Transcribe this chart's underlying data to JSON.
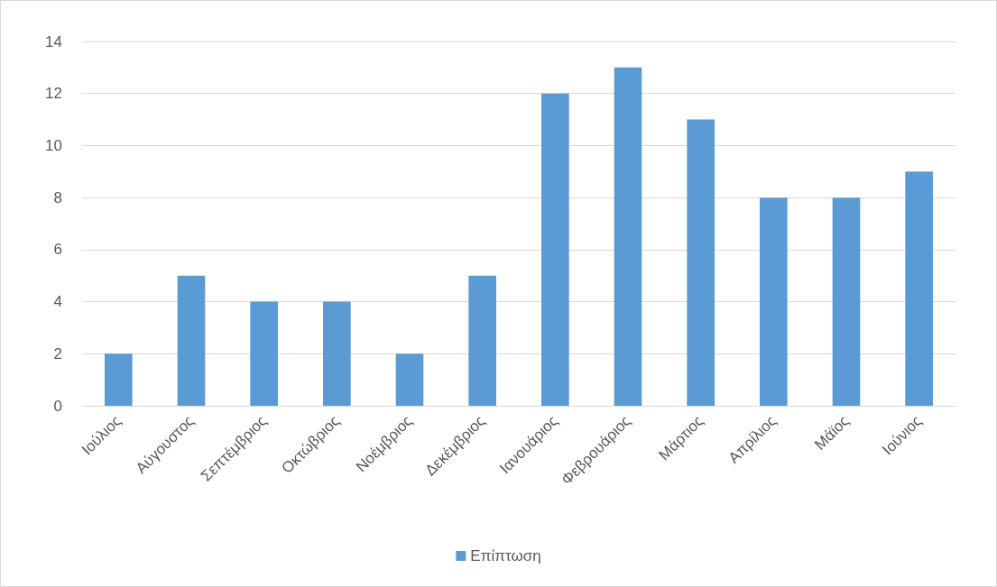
{
  "chart_data": {
    "type": "bar",
    "categories": [
      "Ιούλιος",
      "Αύγουστος",
      "Σεπτέμβριος",
      "Οκτώβριος",
      "Νοέμβριος",
      "Δεκέμβριος",
      "Ιανουάριος",
      "Φεβρουάριος",
      "Μάρτιος",
      "Απρίλιος",
      "Μάϊος",
      "Ιούνιος"
    ],
    "series": [
      {
        "name": "Επίπτωση",
        "color": "#5b9bd5",
        "values": [
          2,
          5,
          4,
          4,
          2,
          5,
          12,
          13,
          11,
          8,
          8,
          9
        ]
      }
    ],
    "ylim": [
      0,
      14
    ],
    "yticks": [
      0,
      2,
      4,
      6,
      8,
      10,
      12,
      14
    ],
    "grid": "y",
    "legend": "bottom"
  }
}
